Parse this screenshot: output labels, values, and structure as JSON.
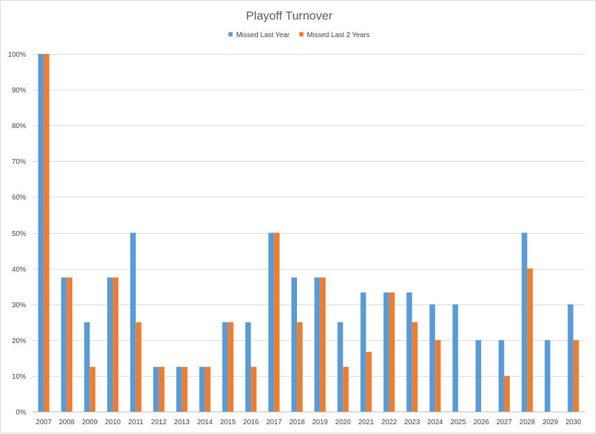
{
  "chart_data": {
    "type": "bar",
    "title": "Playoff Turnover",
    "xlabel": "",
    "ylabel": "",
    "ylim": [
      0,
      100
    ],
    "y_tick_labels": [
      "0%",
      "10%",
      "20%",
      "30%",
      "40%",
      "50%",
      "60%",
      "70%",
      "80%",
      "90%",
      "100%"
    ],
    "y_tick_values": [
      0,
      10,
      20,
      30,
      40,
      50,
      60,
      70,
      80,
      90,
      100
    ],
    "grid": true,
    "legend_position": "top",
    "categories": [
      "2007",
      "2008",
      "2009",
      "2010",
      "2011",
      "2012",
      "2013",
      "2014",
      "2015",
      "2016",
      "2017",
      "2018",
      "2019",
      "2020",
      "2021",
      "2022",
      "2023",
      "2024",
      "2025",
      "2026",
      "2027",
      "2028",
      "2029",
      "2030"
    ],
    "series": [
      {
        "name": "Missed Last Year",
        "color": "#5b9bd5",
        "values": [
          100,
          37.5,
          25,
          37.5,
          50,
          12.5,
          12.5,
          12.5,
          25,
          25,
          50,
          37.5,
          37.5,
          25,
          33.3,
          33.3,
          33.3,
          30,
          30,
          20,
          20,
          50,
          20,
          30
        ]
      },
      {
        "name": "Missed Last 2 Years",
        "color": "#ed7d31",
        "values": [
          100,
          37.5,
          12.5,
          37.5,
          25,
          12.5,
          12.5,
          12.5,
          25,
          12.5,
          50,
          25,
          37.5,
          12.5,
          16.7,
          33.3,
          25,
          20,
          0,
          0,
          10,
          40,
          0,
          20
        ]
      }
    ]
  }
}
